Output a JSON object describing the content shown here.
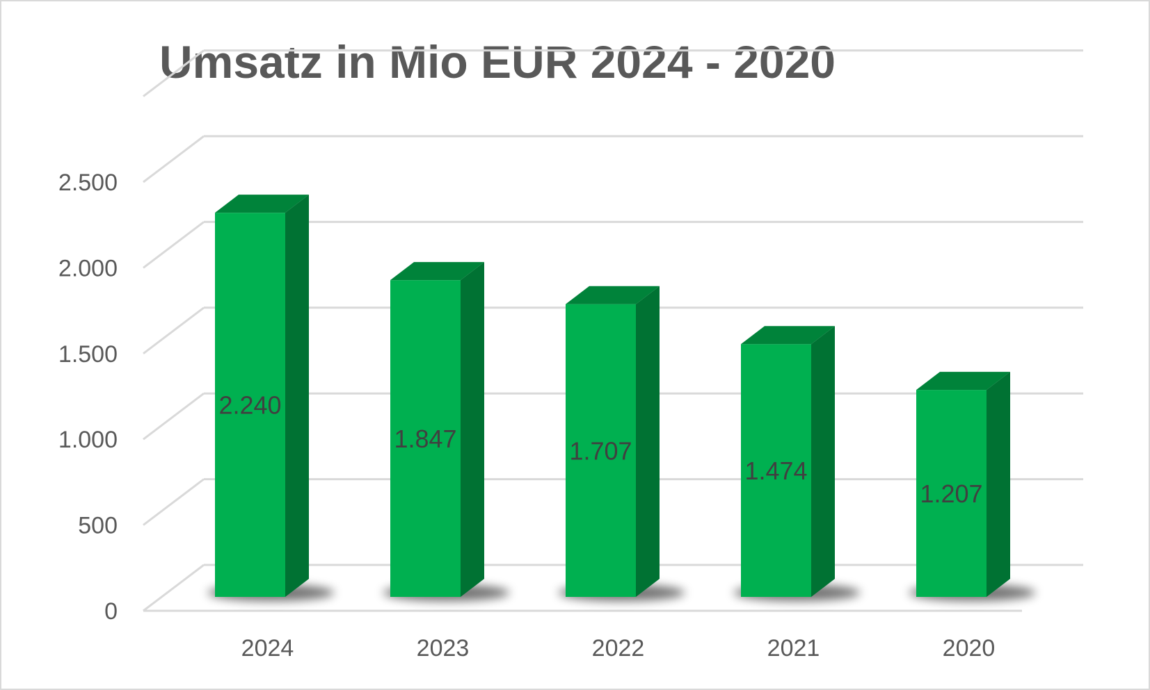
{
  "chart_data": {
    "type": "bar",
    "style": "3d-column",
    "title": "Umsatz in Mio EUR 2024 - 2020",
    "xlabel": "",
    "ylabel": "",
    "categories": [
      "2024",
      "2023",
      "2022",
      "2021",
      "2020"
    ],
    "values": [
      2240,
      1847,
      1707,
      1474,
      1207
    ],
    "data_labels": [
      "2.240",
      "1.847",
      "1.707",
      "1.474",
      "1.207"
    ],
    "ylim": [
      0,
      3000
    ],
    "y_ticks": [
      0,
      500,
      1000,
      1500,
      2000,
      2500
    ],
    "y_tick_labels": [
      "0",
      "500",
      "1.000",
      "1.500",
      "2.000",
      "2.500"
    ],
    "grid": true,
    "legend": "none",
    "colors": {
      "front": "#00b050",
      "top": "#00833a",
      "side": "#007233",
      "grid": "#d9d9d9",
      "text": "#595959"
    }
  }
}
